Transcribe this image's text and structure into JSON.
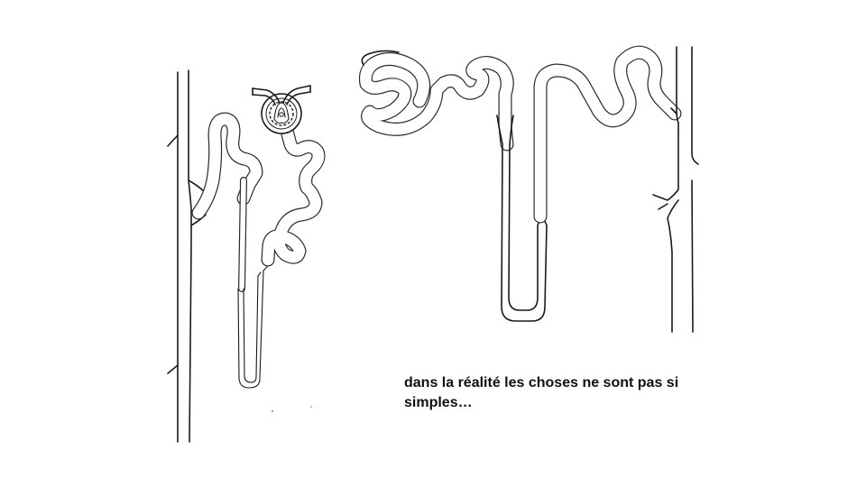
{
  "slide": {
    "caption": "dans la réalité les choses ne sont pas si simples…"
  }
}
